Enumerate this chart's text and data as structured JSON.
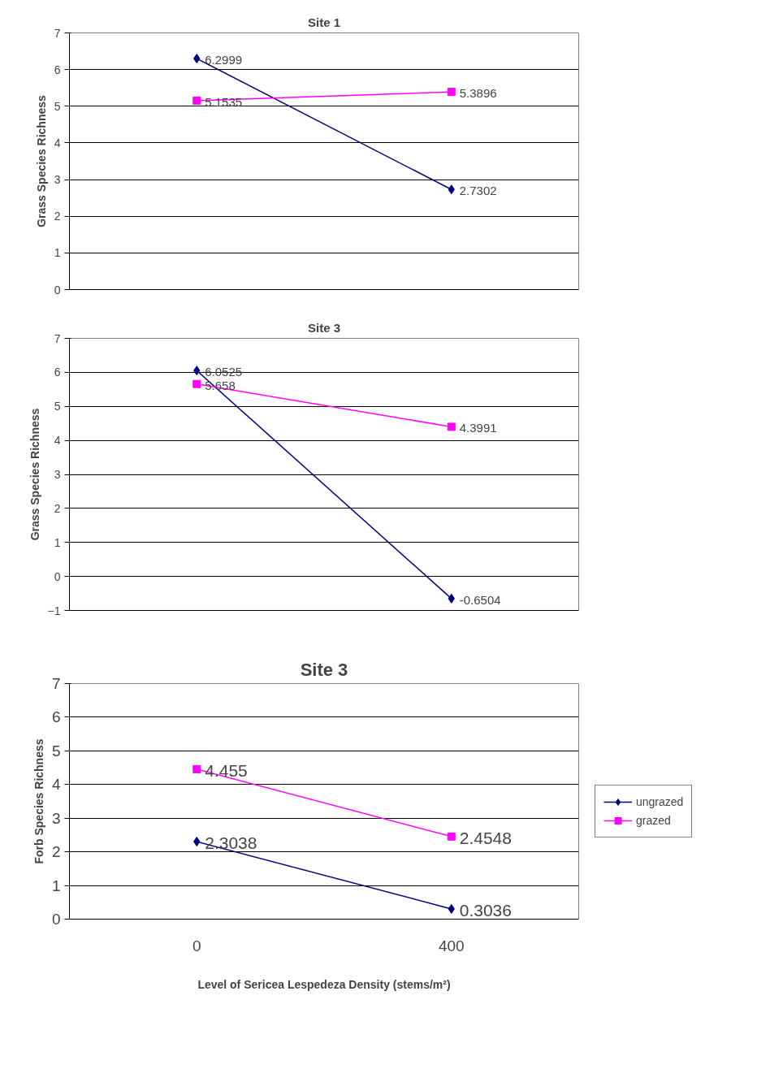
{
  "chart_data": [
    {
      "type": "line",
      "title": "Site 1",
      "ylabel": "Grass Species Richness",
      "categories": [
        "0",
        "400"
      ],
      "ylim": [
        0,
        7
      ],
      "yticks": [
        0,
        1,
        2,
        3,
        4,
        5,
        6,
        7
      ],
      "grid": "y",
      "data_labels": true,
      "tick_labels": "y",
      "legend": false,
      "series": [
        {
          "color": "#000080",
          "marker": "diamond",
          "values": [
            6.2999,
            2.7302
          ]
        },
        {
          "color": "#ff00ff",
          "marker": "square",
          "values": [
            5.1535,
            5.3896
          ]
        }
      ]
    },
    {
      "type": "line",
      "title": "Site 3",
      "ylabel": "Grass Species Richness",
      "categories": [
        "0",
        "400"
      ],
      "ylim": [
        -1,
        7
      ],
      "yticks": [
        -1,
        0,
        1,
        2,
        3,
        4,
        5,
        6,
        7
      ],
      "grid": "y",
      "data_labels": true,
      "tick_labels": "y",
      "legend": false,
      "series": [
        {
          "color": "#000080",
          "marker": "diamond",
          "values": [
            6.0525,
            -0.6504
          ]
        },
        {
          "color": "#ff00ff",
          "marker": "square",
          "values": [
            5.658,
            4.3991
          ]
        }
      ]
    },
    {
      "type": "line",
      "title": "Site 3",
      "ylabel": "Forb Species Richness",
      "xlabel": "Level of Sericea Lespedeza Density (stems/m²)",
      "categories": [
        "0",
        "400"
      ],
      "ylim": [
        0,
        7
      ],
      "yticks": [
        0,
        1,
        2,
        3,
        4,
        5,
        6,
        7
      ],
      "grid": "y",
      "data_labels": true,
      "legend": "right",
      "series": [
        {
          "name": "ungrazed",
          "color": "#000080",
          "marker": "diamond",
          "values": [
            2.3038,
            0.3036
          ]
        },
        {
          "name": "grazed",
          "color": "#ff00ff",
          "marker": "square",
          "values": [
            4.455,
            2.4548
          ]
        }
      ]
    }
  ]
}
